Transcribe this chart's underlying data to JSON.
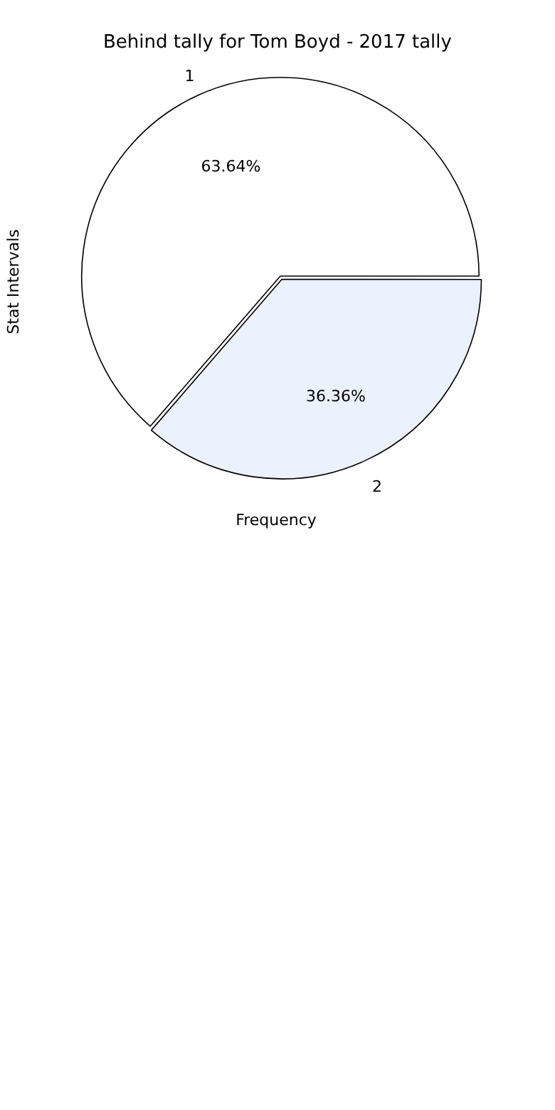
{
  "chart_data": {
    "type": "pie",
    "title": "Behind tally for Tom Boyd - 2017 tally",
    "xlabel": "Frequency",
    "ylabel": "Stat Intervals",
    "categories": [
      "1",
      "2"
    ],
    "values": [
      63.64,
      36.36
    ],
    "colors": [
      "#ffffff",
      "#ebf1fd"
    ],
    "value_labels": [
      "63.64%",
      "36.36%"
    ],
    "legend": false
  }
}
